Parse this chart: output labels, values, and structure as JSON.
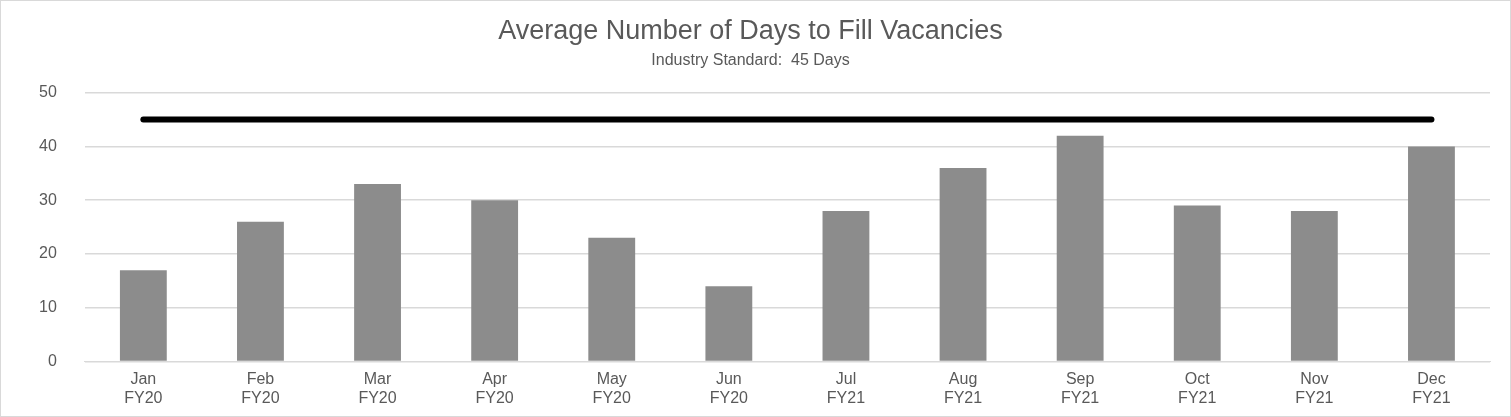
{
  "chart_data": {
    "type": "bar",
    "title": "Average Number of Days to Fill Vacancies",
    "subtitle": "Industry Standard:  45 Days",
    "categories": [
      "Jan FY20",
      "Feb FY20",
      "Mar FY20",
      "Apr FY20",
      "May FY20",
      "Jun FY20",
      "Jul FY21",
      "Aug FY21",
      "Sep FY21",
      "Oct FY21",
      "Nov FY21",
      "Dec FY21"
    ],
    "values": [
      17,
      26,
      33,
      30,
      23,
      14,
      28,
      36,
      42,
      29,
      28,
      40
    ],
    "color": "#8c8c8c",
    "ylim": [
      0,
      50
    ],
    "yticks": [
      0,
      10,
      20,
      30,
      40,
      50
    ],
    "grid": "y",
    "ref_lines": [
      {
        "axis": "y",
        "value": 45,
        "color": "#000000"
      }
    ]
  }
}
